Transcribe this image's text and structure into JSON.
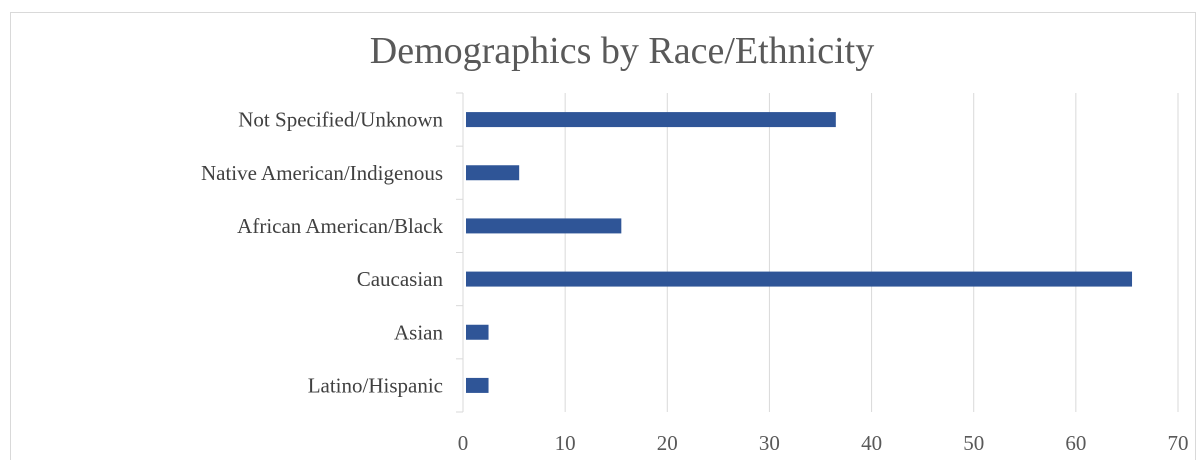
{
  "chart_data": {
    "type": "bar",
    "orientation": "horizontal",
    "title": "Demographics by Race/Ethnicity",
    "xlabel": "",
    "ylabel": "",
    "categories": [
      "Latino/Hispanic",
      "Asian",
      "Caucasian",
      "African American/Black",
      "Native American/Indigenous",
      "Not Specified/Unknown"
    ],
    "values": [
      2.5,
      2.5,
      65.5,
      15.5,
      5.5,
      36.5
    ],
    "xlim": [
      0,
      70
    ],
    "x_ticks": [
      "0",
      "10",
      "20",
      "30",
      "40",
      "50",
      "60",
      "70"
    ],
    "grid": "vertical",
    "bar_color": "#2F5597",
    "gridline_color": "#D9D9D9"
  }
}
